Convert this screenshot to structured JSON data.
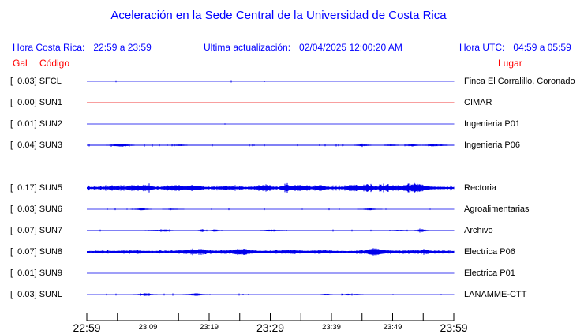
{
  "title": "Aceleración en la Sede Central de la Universidad de Costa Rica",
  "header": {
    "local_time_label": "Hora Costa Rica:",
    "local_time_value": "22:59 a 23:59",
    "last_update_label": "Ultima actualización:",
    "last_update_value": "02/04/2025 12:00:20 AM",
    "utc_time_label": "Hora UTC:",
    "utc_time_value": "04:59 a 05:59"
  },
  "column_headers": {
    "gal": "Gal",
    "code": "Código",
    "place": "Lugar"
  },
  "colors": {
    "heading_blue": "#0000FF",
    "heading_red": "#FF0000",
    "trace_blue": "#0000EB",
    "trace_red": "#EE0000",
    "axis_black": "#000000"
  },
  "chart_data": {
    "type": "line",
    "subtype": "seismogram-helicorder",
    "title": "Aceleración en la Sede Central de la Universidad de Costa Rica",
    "units": "Gal",
    "x_range": [
      "22:59",
      "23:59"
    ],
    "x_tick_interval_minutes": 5,
    "x_labels": [
      {
        "text": "22:59",
        "major": true
      },
      {
        "text": "23:09",
        "major": false
      },
      {
        "text": "23:19",
        "major": false
      },
      {
        "text": "23:29",
        "major": true
      },
      {
        "text": "23:39",
        "major": false
      },
      {
        "text": "23:49",
        "major": false
      },
      {
        "text": "23:59",
        "major": true
      }
    ],
    "grid": false,
    "legend": "none",
    "channels": [
      {
        "gal": 0.03,
        "code": "SFCL",
        "location": "Finca El Corralillo, Coronado",
        "color": "#0000EB",
        "slot": 0,
        "activity": "quiet",
        "trace": {
          "base": 0.45,
          "jitter": 0,
          "ip": 0.005,
          "ia": 1.1,
          "bursts": 0,
          "ba": 0,
          "bw": 5,
          "tilt": 0,
          "seed": 101
        }
      },
      {
        "gal": 0.0,
        "code": "SUN1",
        "location": "CIMAR",
        "color": "#EE0000",
        "slot": 1,
        "activity": "offline-flat",
        "trace": {
          "base": 0.4,
          "jitter": 0,
          "ip": 0,
          "ia": 0,
          "bursts": 0,
          "ba": 0,
          "bw": 5,
          "tilt": 0,
          "seed": 102
        }
      },
      {
        "gal": 0.01,
        "code": "SUN2",
        "location": "Ingenieria P01",
        "color": "#0000EB",
        "slot": 2,
        "activity": "flat",
        "trace": {
          "base": 0.4,
          "jitter": 0,
          "ip": 0.002,
          "ia": 0.5,
          "bursts": 0,
          "ba": 0,
          "bw": 5,
          "tilt": 0,
          "seed": 103
        }
      },
      {
        "gal": 0.04,
        "code": "SUN3",
        "location": "Ingenieria P06",
        "color": "#0000EB",
        "slot": 3,
        "activity": "low",
        "trace": {
          "base": 0.5,
          "jitter": 0,
          "ip": 0.055,
          "ia": 1.1,
          "bursts": 6,
          "ba": 1.1,
          "bw": 5,
          "tilt": -0.25,
          "seed": 104
        }
      },
      {
        "gal": 0.17,
        "code": "SUN5",
        "location": "Rectoria",
        "color": "#0000EB",
        "slot": 5,
        "activity": "high",
        "trace": {
          "base": 0.95,
          "jitter": 0.7,
          "ip": 0.22,
          "ia": 2.0,
          "bursts": 16,
          "ba": 2.6,
          "bw": 6,
          "tilt": 0,
          "seed": 105
        }
      },
      {
        "gal": 0.03,
        "code": "SUN6",
        "location": "Agroalimentarias",
        "color": "#0000EB",
        "slot": 6,
        "activity": "low",
        "trace": {
          "base": 0.45,
          "jitter": 0,
          "ip": 0.035,
          "ia": 0.9,
          "bursts": 4,
          "ba": 0.8,
          "bw": 4,
          "tilt": 0,
          "seed": 106
        }
      },
      {
        "gal": 0.07,
        "code": "SUN7",
        "location": "Archivo",
        "color": "#0000EB",
        "slot": 7,
        "activity": "medium",
        "trace": {
          "base": 0.5,
          "jitter": 0,
          "ip": 0.05,
          "ia": 1.1,
          "bursts": 7,
          "ba": 1.2,
          "bw": 5,
          "tilt": 0.1,
          "seed": 107
        }
      },
      {
        "gal": 0.07,
        "code": "SUN8",
        "location": "Electrica P06",
        "color": "#0000EB",
        "slot": 8,
        "activity": "medium-high",
        "trace": {
          "base": 0.9,
          "jitter": 0.5,
          "ip": 0.18,
          "ia": 1.2,
          "bursts": 14,
          "ba": 1.4,
          "bw": 8,
          "tilt": 0.15,
          "seed": 108
        }
      },
      {
        "gal": 0.01,
        "code": "SUN9",
        "location": "Electrica P01",
        "color": "#0000EB",
        "slot": 9,
        "activity": "flat",
        "trace": {
          "base": 0.4,
          "jitter": 0,
          "ip": 0,
          "ia": 0,
          "bursts": 0,
          "ba": 0,
          "bw": 5,
          "tilt": 0,
          "seed": 109
        }
      },
      {
        "gal": 0.03,
        "code": "SUNL",
        "location": "LANAMME-CTT",
        "color": "#0000EB",
        "slot": 10,
        "activity": "low",
        "trace": {
          "base": 0.45,
          "jitter": 0,
          "ip": 0.035,
          "ia": 1.0,
          "bursts": 5,
          "ba": 0.9,
          "bw": 4,
          "tilt": -0.35,
          "seed": 110
        }
      }
    ]
  }
}
